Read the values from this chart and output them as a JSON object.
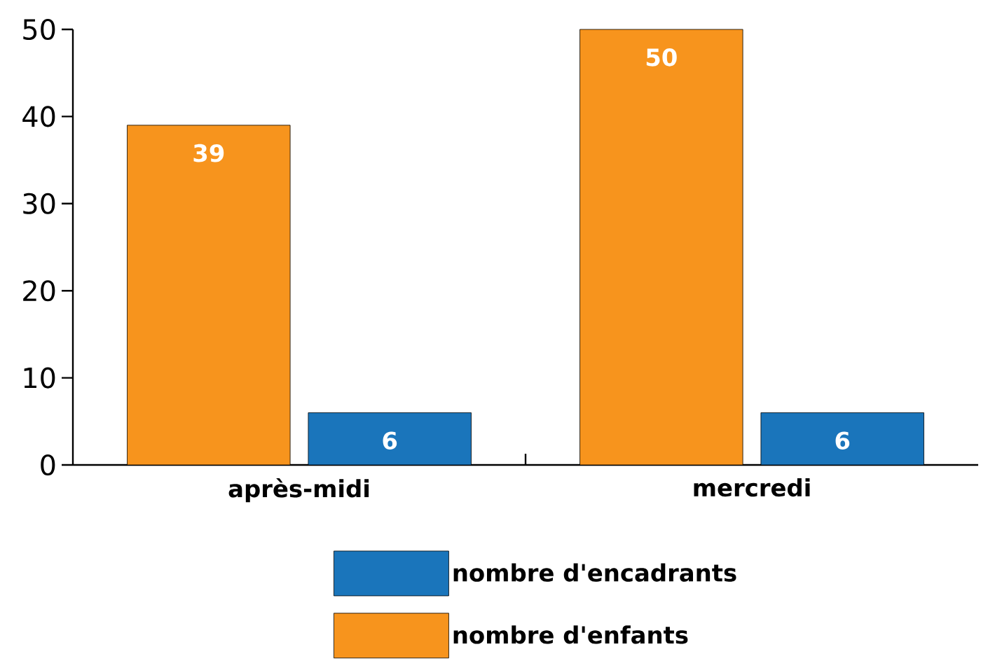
{
  "chart_data": {
    "type": "bar",
    "categories": [
      "après-midi",
      "mercredi"
    ],
    "series": [
      {
        "name": "nombre d'enfants",
        "color": "#f7941d",
        "values": [
          39,
          50
        ]
      },
      {
        "name": "nombre d'encadrants",
        "color": "#1a75bb",
        "values": [
          6,
          6
        ]
      }
    ],
    "ylim": [
      0,
      50
    ],
    "yticks": [
      0,
      10,
      20,
      30,
      40,
      50
    ],
    "data_labels": true,
    "legend": "bottom",
    "grid": false
  }
}
